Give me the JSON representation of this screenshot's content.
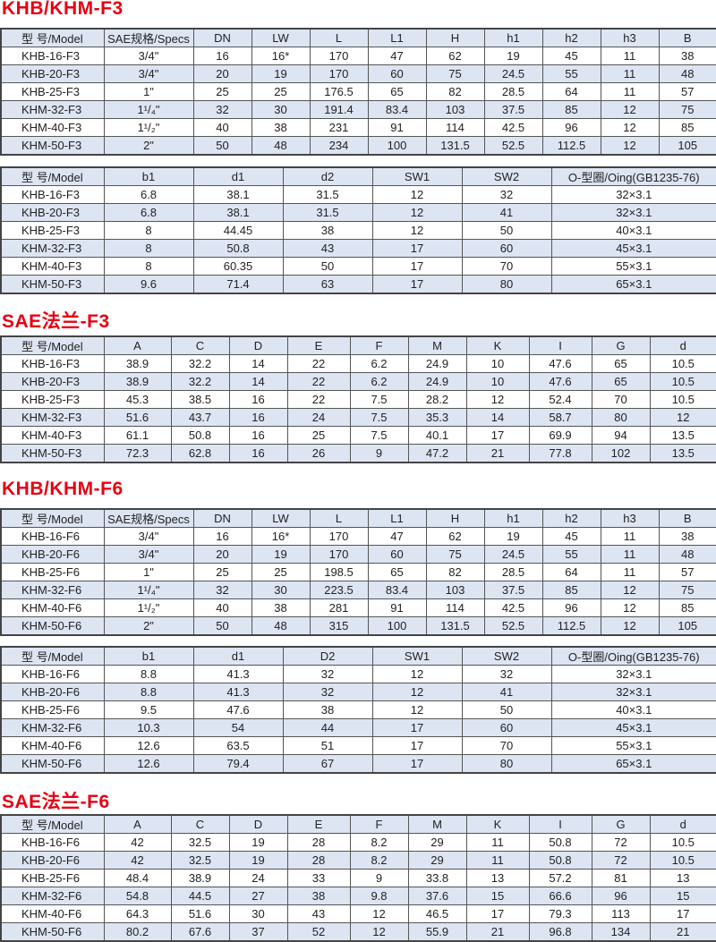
{
  "sections": [
    {
      "title": "KHB/KHM-F3",
      "tables": [
        {
          "headers": [
            "型 号/Model",
            "SAE规格/Specs",
            "DN",
            "LW",
            "L",
            "L1",
            "H",
            "h1",
            "h2",
            "h3",
            "B"
          ],
          "rows": [
            [
              "KHB-16-F3",
              "3/4\"",
              "16",
              "16*",
              "170",
              "47",
              "62",
              "19",
              "45",
              "11",
              "38"
            ],
            [
              "KHB-20-F3",
              "3/4\"",
              "20",
              "19",
              "170",
              "60",
              "75",
              "24.5",
              "55",
              "11",
              "48"
            ],
            [
              "KHB-25-F3",
              "1\"",
              "25",
              "25",
              "176.5",
              "65",
              "82",
              "28.5",
              "64",
              "11",
              "57"
            ],
            [
              "KHM-32-F3",
              "1¹/₄\"",
              "32",
              "30",
              "191.4",
              "83.4",
              "103",
              "37.5",
              "85",
              "12",
              "75"
            ],
            [
              "KHM-40-F3",
              "1¹/₂\"",
              "40",
              "38",
              "231",
              "91",
              "114",
              "42.5",
              "96",
              "12",
              "85"
            ],
            [
              "KHM-50-F3",
              "2\"",
              "50",
              "48",
              "234",
              "100",
              "131.5",
              "52.5",
              "112.5",
              "12",
              "105"
            ]
          ]
        },
        {
          "headers": [
            "型 号/Model",
            "b1",
            "d1",
            "d2",
            "SW1",
            "SW2",
            "O-型圈/Oing(GB1235-76)"
          ],
          "rows": [
            [
              "KHB-16-F3",
              "6.8",
              "38.1",
              "31.5",
              "12",
              "32",
              "32×3.1"
            ],
            [
              "KHB-20-F3",
              "6.8",
              "38.1",
              "31.5",
              "12",
              "41",
              "32×3.1"
            ],
            [
              "KHB-25-F3",
              "8",
              "44.45",
              "38",
              "12",
              "50",
              "40×3.1"
            ],
            [
              "KHM-32-F3",
              "8",
              "50.8",
              "43",
              "17",
              "60",
              "45×3.1"
            ],
            [
              "KHM-40-F3",
              "8",
              "60.35",
              "50",
              "17",
              "70",
              "55×3.1"
            ],
            [
              "KHM-50-F3",
              "9.6",
              "71.4",
              "63",
              "17",
              "80",
              "65×3.1"
            ]
          ]
        }
      ]
    },
    {
      "title": "SAE法兰-F3",
      "tables": [
        {
          "headers": [
            "型 号/Model",
            "A",
            "C",
            "D",
            "E",
            "F",
            "M",
            "K",
            "I",
            "G",
            "d"
          ],
          "rows": [
            [
              "KHB-16-F3",
              "38.9",
              "32.2",
              "14",
              "22",
              "6.2",
              "24.9",
              "10",
              "47.6",
              "65",
              "10.5"
            ],
            [
              "KHB-20-F3",
              "38.9",
              "32.2",
              "14",
              "22",
              "6.2",
              "24.9",
              "10",
              "47.6",
              "65",
              "10.5"
            ],
            [
              "KHB-25-F3",
              "45.3",
              "38.5",
              "16",
              "22",
              "7.5",
              "28.2",
              "12",
              "52.4",
              "70",
              "10.5"
            ],
            [
              "KHM-32-F3",
              "51.6",
              "43.7",
              "16",
              "24",
              "7.5",
              "35.3",
              "14",
              "58.7",
              "80",
              "12"
            ],
            [
              "KHM-40-F3",
              "61.1",
              "50.8",
              "16",
              "25",
              "7.5",
              "40.1",
              "17",
              "69.9",
              "94",
              "13.5"
            ],
            [
              "KHM-50-F3",
              "72.3",
              "62.8",
              "16",
              "26",
              "9",
              "47.2",
              "21",
              "77.8",
              "102",
              "13.5"
            ]
          ]
        }
      ]
    },
    {
      "title": "KHB/KHM-F6",
      "tables": [
        {
          "headers": [
            "型 号/Model",
            "SAE规格/Specs",
            "DN",
            "LW",
            "L",
            "L1",
            "H",
            "h1",
            "h2",
            "h3",
            "B"
          ],
          "rows": [
            [
              "KHB-16-F6",
              "3/4\"",
              "16",
              "16*",
              "170",
              "47",
              "62",
              "19",
              "45",
              "11",
              "38"
            ],
            [
              "KHB-20-F6",
              "3/4\"",
              "20",
              "19",
              "170",
              "60",
              "75",
              "24.5",
              "55",
              "11",
              "48"
            ],
            [
              "KHB-25-F6",
              "1\"",
              "25",
              "25",
              "198.5",
              "65",
              "82",
              "28.5",
              "64",
              "11",
              "57"
            ],
            [
              "KHM-32-F6",
              "1¹/₄\"",
              "32",
              "30",
              "223.5",
              "83.4",
              "103",
              "37.5",
              "85",
              "12",
              "75"
            ],
            [
              "KHM-40-F6",
              "1¹/₂\"",
              "40",
              "38",
              "281",
              "91",
              "114",
              "42.5",
              "96",
              "12",
              "85"
            ],
            [
              "KHM-50-F6",
              "2\"",
              "50",
              "48",
              "315",
              "100",
              "131.5",
              "52.5",
              "112.5",
              "12",
              "105"
            ]
          ]
        },
        {
          "headers": [
            "型 号/Model",
            "b1",
            "d1",
            "D2",
            "SW1",
            "SW2",
            "O-型圈/Oing(GB1235-76)"
          ],
          "rows": [
            [
              "KHB-16-F6",
              "8.8",
              "41.3",
              "32",
              "12",
              "32",
              "32×3.1"
            ],
            [
              "KHB-20-F6",
              "8.8",
              "41.3",
              "32",
              "12",
              "41",
              "32×3.1"
            ],
            [
              "KHB-25-F6",
              "9.5",
              "47.6",
              "38",
              "12",
              "50",
              "40×3.1"
            ],
            [
              "KHM-32-F6",
              "10.3",
              "54",
              "44",
              "17",
              "60",
              "45×3.1"
            ],
            [
              "KHM-40-F6",
              "12.6",
              "63.5",
              "51",
              "17",
              "70",
              "55×3.1"
            ],
            [
              "KHM-50-F6",
              "12.6",
              "79.4",
              "67",
              "17",
              "80",
              "65×3.1"
            ]
          ]
        }
      ]
    },
    {
      "title": "SAE法兰-F6",
      "tables": [
        {
          "headers": [
            "型 号/Model",
            "A",
            "C",
            "D",
            "E",
            "F",
            "M",
            "K",
            "I",
            "G",
            "d"
          ],
          "rows": [
            [
              "KHB-16-F6",
              "42",
              "32.5",
              "19",
              "28",
              "8.2",
              "29",
              "11",
              "50.8",
              "72",
              "10.5"
            ],
            [
              "KHB-20-F6",
              "42",
              "32.5",
              "19",
              "28",
              "8.2",
              "29",
              "11",
              "50.8",
              "72",
              "10.5"
            ],
            [
              "KHB-25-F6",
              "48.4",
              "38.9",
              "24",
              "33",
              "9",
              "33.8",
              "13",
              "57.2",
              "81",
              "13"
            ],
            [
              "KHM-32-F6",
              "54.8",
              "44.5",
              "27",
              "38",
              "9.8",
              "37.6",
              "15",
              "66.6",
              "96",
              "15"
            ],
            [
              "KHM-40-F6",
              "64.3",
              "51.6",
              "30",
              "43",
              "12",
              "46.5",
              "17",
              "79.3",
              "113",
              "17"
            ],
            [
              "KHM-50-F6",
              "80.2",
              "67.6",
              "37",
              "52",
              "12",
              "55.9",
              "21",
              "96.8",
              "134",
              "21"
            ]
          ]
        }
      ]
    }
  ],
  "colors": {
    "title": "#e60012",
    "header_bg": "#dde5f3",
    "border": "#555555"
  }
}
